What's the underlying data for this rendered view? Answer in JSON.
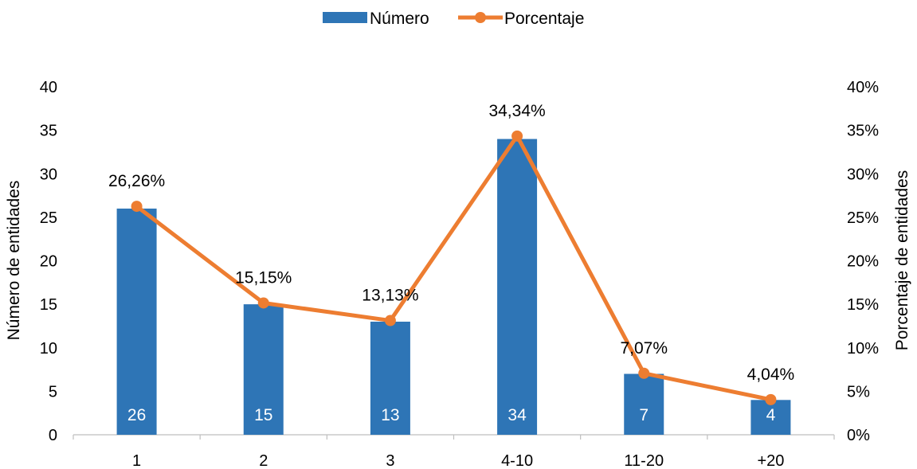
{
  "chart_data": {
    "type": "bar",
    "categories": [
      "1",
      "2",
      "3",
      "4-10",
      "11-20",
      "+20"
    ],
    "series": [
      {
        "name": "Número",
        "type": "bar",
        "axis": "left",
        "color": "#2e75b6",
        "values": [
          26,
          15,
          13,
          34,
          7,
          4
        ],
        "labels": [
          "26",
          "15",
          "13",
          "34",
          "7",
          "4"
        ]
      },
      {
        "name": "Porcentaje",
        "type": "line",
        "axis": "right",
        "color": "#ed7d31",
        "values": [
          26.26,
          15.15,
          13.13,
          34.34,
          7.07,
          4.04
        ],
        "labels": [
          "26,26%",
          "15,15%",
          "13,13%",
          "34,34%",
          "7,07%",
          "4,04%"
        ]
      }
    ],
    "ylabel": "Número de entidades",
    "y2label": "Porcentaje de entidades",
    "ylim": [
      0,
      40
    ],
    "y2lim": [
      0,
      40
    ],
    "yticks": [
      "0",
      "5",
      "10",
      "15",
      "20",
      "25",
      "30",
      "35",
      "40"
    ],
    "y2ticks": [
      "0%",
      "5%",
      "10%",
      "15%",
      "20%",
      "25%",
      "30%",
      "35%",
      "40%"
    ],
    "grid": false,
    "legend": "top-center"
  }
}
